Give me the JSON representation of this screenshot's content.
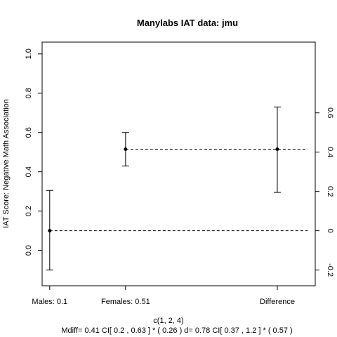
{
  "chart_data": {
    "type": "scatter",
    "title": "Manylabs IAT data:  jmu",
    "ylabel": "IAT Score: Negative Math Association",
    "xlabel": "c(1, 2, 4)",
    "subtitle": "Mdiff= 0.41  CI[ 0.2 , 0.63 ] *  ( 0.26 )   d= 0.78 CI[ 0.37 ,  1.2 ] *  ( 0.57 )",
    "xlim": [
      0.9,
      4.5
    ],
    "ylim": [
      -0.18,
      1.06
    ],
    "left_yticks": [
      0.0,
      0.2,
      0.4,
      0.6,
      0.8,
      1.0
    ],
    "left_ytick_labels": [
      "0.0",
      "0.2",
      "0.4",
      "0.6",
      "0.8",
      "1.0"
    ],
    "right_axis_offset": 0.1,
    "right_yticks": [
      -0.2,
      0.0,
      0.2,
      0.4,
      0.6
    ],
    "right_ytick_labels": [
      "-0.2",
      "0",
      "0.2",
      "0.4",
      "0.6"
    ],
    "x_ticks": [
      {
        "x": 1,
        "label": "Males:  0.1"
      },
      {
        "x": 2,
        "label": "Females:  0.51"
      },
      {
        "x": 4,
        "label": "Difference"
      }
    ],
    "points": [
      {
        "name": "males",
        "x": 1,
        "y": 0.1,
        "lower": -0.1,
        "upper": 0.305
      },
      {
        "name": "females",
        "x": 2,
        "y": 0.515,
        "lower": 0.43,
        "upper": 0.6
      },
      {
        "name": "difference",
        "x": 4,
        "y": 0.515,
        "lower": 0.295,
        "upper": 0.73
      }
    ],
    "reference_lines": [
      {
        "name": "males-line",
        "y": 0.1,
        "x_from": 1,
        "x_to": 4.4
      },
      {
        "name": "females-line",
        "y": 0.515,
        "x_from": 2,
        "x_to": 4.4
      }
    ]
  }
}
